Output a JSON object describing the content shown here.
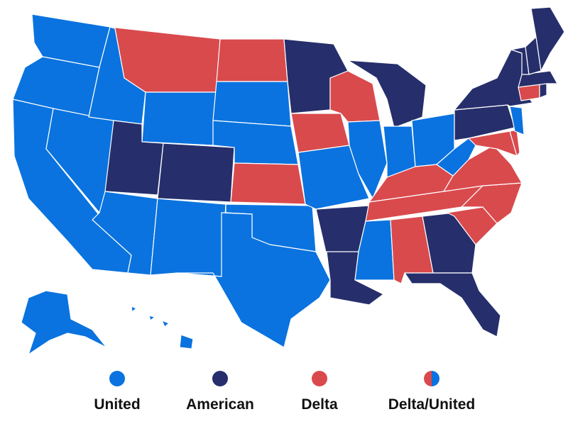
{
  "colors": {
    "United": "#0a73df",
    "American": "#262f6b",
    "Delta": "#d94a4d"
  },
  "legend": [
    {
      "label": "United",
      "swatch": "United"
    },
    {
      "label": "American",
      "swatch": "American"
    },
    {
      "label": "Delta",
      "swatch": "Delta"
    },
    {
      "label": "Delta/United",
      "swatch": "Delta/United"
    }
  ],
  "states": {
    "WA": "United",
    "OR": "United",
    "CA": "United",
    "NV": "United",
    "ID": "United",
    "MT": "Delta",
    "WY": "United",
    "UT": "American",
    "AZ": "United",
    "CO": "American",
    "NM": "United",
    "ND": "Delta",
    "SD": "United",
    "NE": "United",
    "KS": "Delta",
    "OK": "United",
    "TX": "United",
    "MN": "American",
    "IA": "Delta",
    "MO": "United",
    "AR": "American",
    "LA": "American",
    "WI": "Delta",
    "IL": "United",
    "MI": "American",
    "IN": "United",
    "OH": "United",
    "KY": "Delta",
    "TN": "Delta",
    "MS": "United",
    "AL": "Delta",
    "GA": "American",
    "FL": "American",
    "SC": "Delta",
    "NC": "Delta",
    "VA": "Delta",
    "WV": "United",
    "MD": "Delta",
    "DE": "Delta",
    "PA": "American",
    "NJ": "United",
    "NY": "American",
    "CT": "Delta",
    "RI": "American",
    "MA": "American",
    "VT": "American",
    "NH": "American",
    "ME": "American",
    "AK": "United",
    "HI": "United"
  }
}
